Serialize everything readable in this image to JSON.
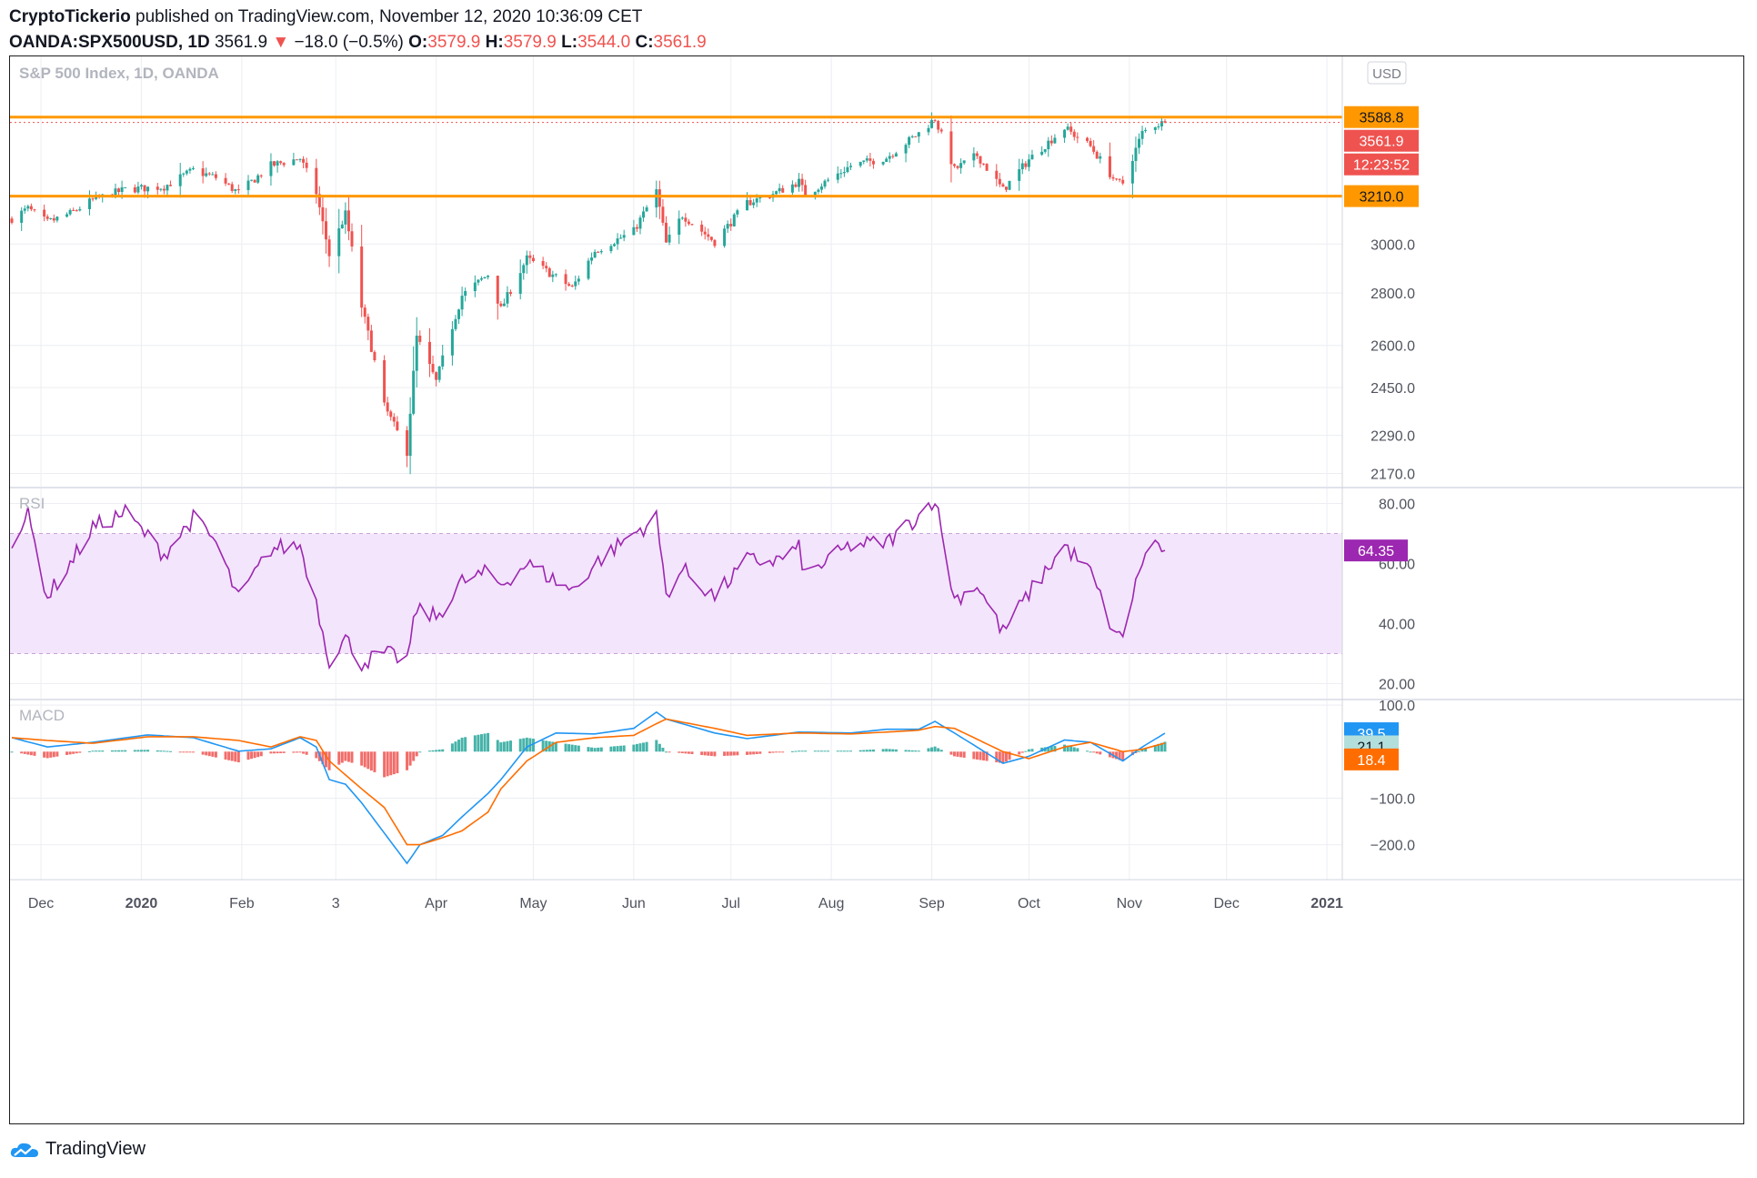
{
  "header": {
    "publisher": "CryptoTickerio",
    "published_text": "published on TradingView.com, November 12, 2020 10:36:09 CET",
    "symbol": "OANDA:SPX500USD, 1D",
    "last": "3561.9",
    "change": "−18.0 (−0.5%)",
    "o_label": "O:",
    "o_val": "3579.9",
    "h_label": "H:",
    "h_val": "3579.9",
    "l_label": "L:",
    "l_val": "3544.0",
    "c_label": "C:",
    "c_val": "3561.9"
  },
  "footer": {
    "brand": "TradingView"
  },
  "colors": {
    "up": "#26a69a",
    "down": "#ef5350",
    "level": "#ff9800",
    "rsi": "#9c27b0",
    "rsi_band": "#f3e5fc",
    "macd": "#2196f3",
    "signal": "#ff6d00"
  },
  "chart_data": [
    {
      "type": "candlestick",
      "title": "S&P 500 Index, 1D, OANDA",
      "currency_label": "USD",
      "y_scale": "log",
      "ylim": [
        2130,
        3850
      ],
      "y_ticks": [
        "2170.0",
        "2290.0",
        "2450.0",
        "2600.0",
        "2800.0",
        "3000.0"
      ],
      "x_labels": [
        "Dec",
        "2020",
        "Feb",
        "3",
        "Apr",
        "May",
        "Jun",
        "Jul",
        "Aug",
        "Sep",
        "Oct",
        "Nov",
        "Dec",
        "2021"
      ],
      "levels": [
        {
          "label": "3588.8",
          "value": 3588.8
        },
        {
          "label": "3210.0",
          "value": 3210.0
        }
      ],
      "last_price": {
        "label": "3561.9",
        "value": 3561.9
      },
      "countdown": "12:23:52",
      "path": [
        {
          "date": "2019-11-22",
          "close": 3110
        },
        {
          "date": "2019-11-27",
          "close": 3153
        },
        {
          "date": "2019-12-03",
          "close": 3093
        },
        {
          "date": "2019-12-10",
          "close": 3132
        },
        {
          "date": "2019-12-17",
          "close": 3192
        },
        {
          "date": "2019-12-27",
          "close": 3240
        },
        {
          "date": "2020-01-08",
          "close": 3253
        },
        {
          "date": "2020-01-17",
          "close": 3329
        },
        {
          "date": "2020-01-24",
          "close": 3295
        },
        {
          "date": "2020-01-31",
          "close": 3225
        },
        {
          "date": "2020-02-10",
          "close": 3352
        },
        {
          "date": "2020-02-19",
          "close": 3386
        },
        {
          "date": "2020-02-24",
          "close": 3225
        },
        {
          "date": "2020-02-28",
          "close": 2954
        },
        {
          "date": "2020-03-04",
          "close": 3130
        },
        {
          "date": "2020-03-09",
          "close": 2746
        },
        {
          "date": "2020-03-16",
          "close": 2386
        },
        {
          "date": "2020-03-23",
          "close": 2237
        },
        {
          "date": "2020-03-26",
          "close": 2630
        },
        {
          "date": "2020-04-01",
          "close": 2470
        },
        {
          "date": "2020-04-09",
          "close": 2790
        },
        {
          "date": "2020-04-17",
          "close": 2874
        },
        {
          "date": "2020-04-21",
          "close": 2736
        },
        {
          "date": "2020-04-29",
          "close": 2939
        },
        {
          "date": "2020-05-13",
          "close": 2820
        },
        {
          "date": "2020-05-20",
          "close": 2971
        },
        {
          "date": "2020-06-01",
          "close": 3055
        },
        {
          "date": "2020-06-08",
          "close": 3232
        },
        {
          "date": "2020-06-11",
          "close": 3002
        },
        {
          "date": "2020-06-16",
          "close": 3125
        },
        {
          "date": "2020-06-26",
          "close": 3009
        },
        {
          "date": "2020-07-06",
          "close": 3179
        },
        {
          "date": "2020-07-15",
          "close": 3226
        },
        {
          "date": "2020-07-22",
          "close": 3276
        },
        {
          "date": "2020-07-24",
          "close": 3215
        },
        {
          "date": "2020-08-07",
          "close": 3351
        },
        {
          "date": "2020-08-18",
          "close": 3389
        },
        {
          "date": "2020-08-28",
          "close": 3508
        },
        {
          "date": "2020-09-02",
          "close": 3580
        },
        {
          "date": "2020-09-08",
          "close": 3332
        },
        {
          "date": "2020-09-15",
          "close": 3401
        },
        {
          "date": "2020-09-23",
          "close": 3237
        },
        {
          "date": "2020-10-01",
          "close": 3380
        },
        {
          "date": "2020-10-12",
          "close": 3534
        },
        {
          "date": "2020-10-20",
          "close": 3443
        },
        {
          "date": "2020-10-28",
          "close": 3271
        },
        {
          "date": "2020-10-30",
          "close": 3270
        },
        {
          "date": "2020-11-05",
          "close": 3510
        },
        {
          "date": "2020-11-09",
          "close": 3550
        },
        {
          "date": "2020-11-12",
          "close": 3561.9
        }
      ]
    },
    {
      "type": "line",
      "title": "RSI",
      "ylim": [
        15,
        85
      ],
      "y_ticks": [
        "20.00",
        "40.00",
        "60.00",
        "80.00"
      ],
      "band": [
        30,
        70
      ],
      "last": {
        "label": "64.35",
        "value": 64.35
      },
      "path": [
        {
          "date": "2019-11-22",
          "value": 68
        },
        {
          "date": "2019-11-27",
          "value": 76
        },
        {
          "date": "2019-12-03",
          "value": 49
        },
        {
          "date": "2019-12-10",
          "value": 60
        },
        {
          "date": "2019-12-17",
          "value": 72
        },
        {
          "date": "2019-12-27",
          "value": 77
        },
        {
          "date": "2020-01-08",
          "value": 63
        },
        {
          "date": "2020-01-17",
          "value": 75
        },
        {
          "date": "2020-01-24",
          "value": 67
        },
        {
          "date": "2020-01-31",
          "value": 48
        },
        {
          "date": "2020-02-10",
          "value": 65
        },
        {
          "date": "2020-02-19",
          "value": 66
        },
        {
          "date": "2020-02-24",
          "value": 47
        },
        {
          "date": "2020-02-28",
          "value": 28
        },
        {
          "date": "2020-03-04",
          "value": 35
        },
        {
          "date": "2020-03-09",
          "value": 27
        },
        {
          "date": "2020-03-16",
          "value": 30
        },
        {
          "date": "2020-03-23",
          "value": 28
        },
        {
          "date": "2020-03-26",
          "value": 45
        },
        {
          "date": "2020-04-01",
          "value": 42
        },
        {
          "date": "2020-04-09",
          "value": 54
        },
        {
          "date": "2020-04-17",
          "value": 57
        },
        {
          "date": "2020-04-21",
          "value": 53
        },
        {
          "date": "2020-04-29",
          "value": 60
        },
        {
          "date": "2020-05-13",
          "value": 51
        },
        {
          "date": "2020-05-20",
          "value": 60
        },
        {
          "date": "2020-06-01",
          "value": 70
        },
        {
          "date": "2020-06-08",
          "value": 75
        },
        {
          "date": "2020-06-11",
          "value": 50
        },
        {
          "date": "2020-06-16",
          "value": 58
        },
        {
          "date": "2020-06-26",
          "value": 49
        },
        {
          "date": "2020-07-06",
          "value": 61
        },
        {
          "date": "2020-07-15",
          "value": 61
        },
        {
          "date": "2020-07-22",
          "value": 65
        },
        {
          "date": "2020-07-24",
          "value": 56
        },
        {
          "date": "2020-08-07",
          "value": 66
        },
        {
          "date": "2020-08-18",
          "value": 67
        },
        {
          "date": "2020-08-28",
          "value": 76
        },
        {
          "date": "2020-09-02",
          "value": 82
        },
        {
          "date": "2020-09-08",
          "value": 48
        },
        {
          "date": "2020-09-15",
          "value": 53
        },
        {
          "date": "2020-09-23",
          "value": 37
        },
        {
          "date": "2020-10-01",
          "value": 50
        },
        {
          "date": "2020-10-12",
          "value": 66
        },
        {
          "date": "2020-10-20",
          "value": 57
        },
        {
          "date": "2020-10-28",
          "value": 35
        },
        {
          "date": "2020-10-30",
          "value": 37
        },
        {
          "date": "2020-11-05",
          "value": 61
        },
        {
          "date": "2020-11-09",
          "value": 67
        },
        {
          "date": "2020-11-12",
          "value": 64.35
        }
      ]
    },
    {
      "type": "line",
      "title": "MACD",
      "ylim": [
        -275,
        110
      ],
      "y_ticks": [
        "−200.0",
        "−100.0",
        "100.0"
      ],
      "last_values": [
        {
          "name": "macd",
          "label": "39.5",
          "value": 39.5
        },
        {
          "name": "histogram",
          "label": "21.1",
          "value": 21.1
        },
        {
          "name": "signal",
          "label": "18.4",
          "value": 18.4
        }
      ],
      "path": [
        {
          "date": "2019-11-22",
          "macd": 30,
          "signal": 30
        },
        {
          "date": "2019-12-03",
          "macd": 10,
          "signal": 24
        },
        {
          "date": "2019-12-17",
          "macd": 20,
          "signal": 18
        },
        {
          "date": "2020-01-03",
          "macd": 36,
          "signal": 32
        },
        {
          "date": "2020-01-17",
          "macd": 30,
          "signal": 32
        },
        {
          "date": "2020-01-31",
          "macd": 1,
          "signal": 24
        },
        {
          "date": "2020-02-10",
          "macd": 6,
          "signal": 10
        },
        {
          "date": "2020-02-19",
          "macd": 30,
          "signal": 32
        },
        {
          "date": "2020-02-24",
          "macd": 10,
          "signal": 24
        },
        {
          "date": "2020-02-28",
          "macd": -60,
          "signal": -20
        },
        {
          "date": "2020-03-04",
          "macd": -70,
          "signal": -50
        },
        {
          "date": "2020-03-09",
          "macd": -110,
          "signal": -80
        },
        {
          "date": "2020-03-16",
          "macd": -175,
          "signal": -120
        },
        {
          "date": "2020-03-23",
          "macd": -240,
          "signal": -200
        },
        {
          "date": "2020-03-27",
          "macd": -200,
          "signal": -200
        },
        {
          "date": "2020-04-03",
          "macd": -180,
          "signal": -185
        },
        {
          "date": "2020-04-09",
          "macd": -140,
          "signal": -170
        },
        {
          "date": "2020-04-17",
          "macd": -90,
          "signal": -130
        },
        {
          "date": "2020-04-21",
          "macd": -60,
          "signal": -80
        },
        {
          "date": "2020-04-29",
          "macd": 10,
          "signal": -20
        },
        {
          "date": "2020-05-08",
          "macd": 40,
          "signal": 20
        },
        {
          "date": "2020-05-20",
          "macd": 38,
          "signal": 30
        },
        {
          "date": "2020-06-01",
          "macd": 50,
          "signal": 35
        },
        {
          "date": "2020-06-08",
          "macd": 85,
          "signal": 60
        },
        {
          "date": "2020-06-11",
          "macd": 70,
          "signal": 70
        },
        {
          "date": "2020-06-26",
          "macd": 40,
          "signal": 50
        },
        {
          "date": "2020-07-06",
          "macd": 28,
          "signal": 35
        },
        {
          "date": "2020-07-22",
          "macd": 42,
          "signal": 40
        },
        {
          "date": "2020-08-07",
          "macd": 40,
          "signal": 38
        },
        {
          "date": "2020-08-18",
          "macd": 48,
          "signal": 42
        },
        {
          "date": "2020-08-28",
          "macd": 48,
          "signal": 46
        },
        {
          "date": "2020-09-02",
          "macd": 65,
          "signal": 54
        },
        {
          "date": "2020-09-08",
          "macd": 40,
          "signal": 50
        },
        {
          "date": "2020-09-23",
          "macd": -25,
          "signal": 0
        },
        {
          "date": "2020-10-01",
          "macd": -10,
          "signal": -15
        },
        {
          "date": "2020-10-12",
          "macd": 25,
          "signal": 10
        },
        {
          "date": "2020-10-20",
          "macd": 20,
          "signal": 20
        },
        {
          "date": "2020-10-30",
          "macd": -20,
          "signal": 0
        },
        {
          "date": "2020-11-05",
          "macd": 10,
          "signal": 5
        },
        {
          "date": "2020-11-12",
          "macd": 39.5,
          "signal": 18.4
        }
      ]
    }
  ]
}
